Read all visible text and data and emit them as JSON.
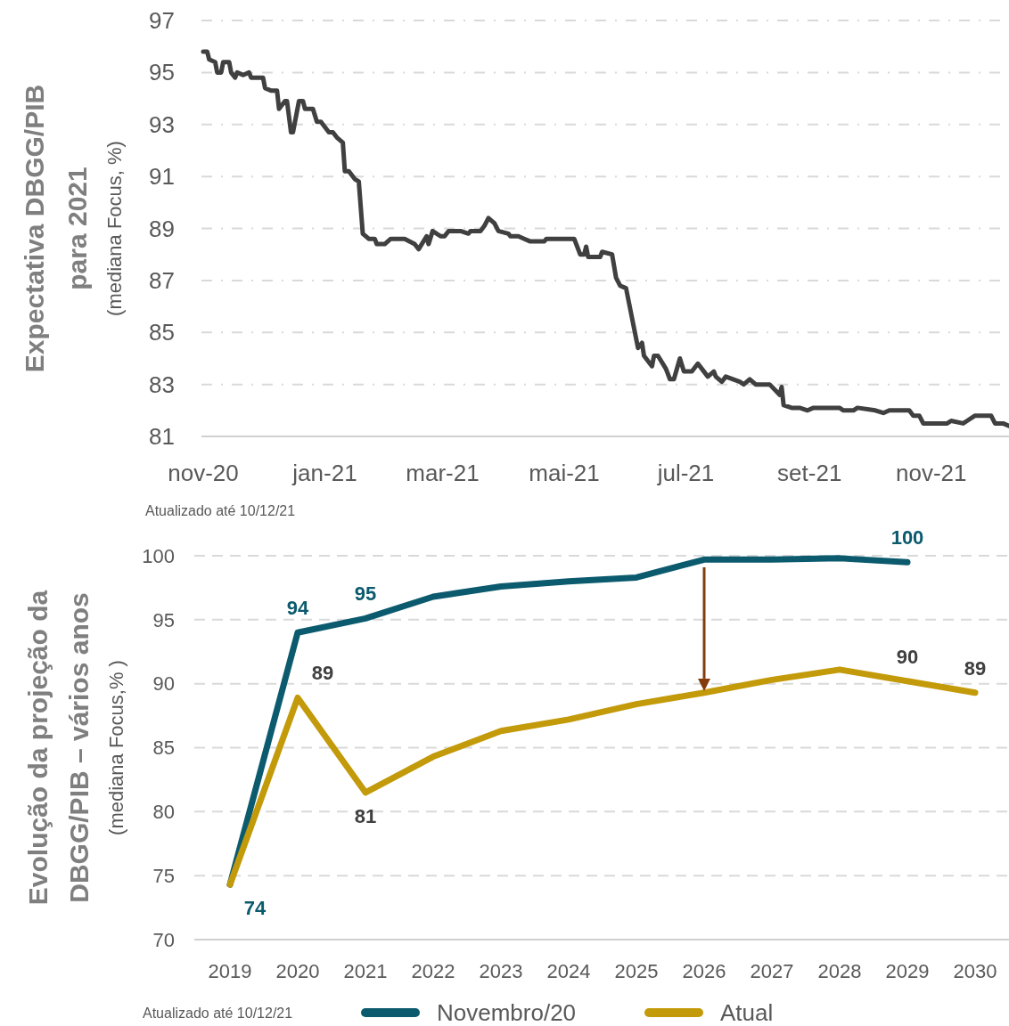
{
  "chart_data": [
    {
      "type": "line",
      "ylabel": "Expectativa DBGG/PIB\npara 2021\n(mediana Focus, %)",
      "annotations": [
        "Atualizado até 10/12/21"
      ],
      "color": "#404040",
      "grid": "y",
      "x": [
        "2020-11-01",
        "2020-11-03",
        "2020-11-04",
        "2020-11-07",
        "2020-11-08",
        "2020-11-10",
        "2020-11-11",
        "2020-11-14",
        "2020-11-15",
        "2020-11-17",
        "2020-11-18",
        "2020-11-21",
        "2020-11-24",
        "2020-11-25",
        "2020-12-01",
        "2020-12-02",
        "2020-12-05",
        "2020-12-08",
        "2020-12-09",
        "2020-12-12",
        "2020-12-13",
        "2020-12-15",
        "2020-12-16",
        "2020-12-19",
        "2020-12-21",
        "2020-12-22",
        "2020-12-26",
        "2020-12-28",
        "2020-12-30",
        "2021-01-03",
        "2021-01-05",
        "2021-01-07",
        "2021-01-10",
        "2021-01-11",
        "2021-01-13",
        "2021-01-16",
        "2021-01-18",
        "2021-01-20",
        "2021-01-23",
        "2021-01-26",
        "2021-01-27",
        "2021-01-31",
        "2021-02-03",
        "2021-02-10",
        "2021-02-15",
        "2021-02-17",
        "2021-02-21",
        "2021-02-22",
        "2021-02-24",
        "2021-02-28",
        "2021-03-02",
        "2021-03-04",
        "2021-03-10",
        "2021-03-14",
        "2021-03-15",
        "2021-03-20",
        "2021-03-22",
        "2021-03-24",
        "2021-03-27",
        "2021-03-29",
        "2021-04-03",
        "2021-04-04",
        "2021-04-08",
        "2021-04-11",
        "2021-04-14",
        "2021-04-19",
        "2021-04-21",
        "2021-04-22",
        "2021-04-30",
        "2021-05-06",
        "2021-05-09",
        "2021-05-11",
        "2021-05-12",
        "2021-05-13",
        "2021-05-19",
        "2021-05-20",
        "2021-05-25",
        "2021-05-27",
        "2021-05-29",
        "2021-06-01",
        "2021-06-07",
        "2021-06-09",
        "2021-06-10",
        "2021-06-14",
        "2021-06-15",
        "2021-06-17",
        "2021-06-21",
        "2021-06-23",
        "2021-06-25",
        "2021-06-28",
        "2021-06-30",
        "2021-07-04",
        "2021-07-07",
        "2021-07-09",
        "2021-07-12",
        "2021-07-15",
        "2021-07-16",
        "2021-07-19",
        "2021-07-21",
        "2021-07-28",
        "2021-07-30",
        "2021-08-02",
        "2021-08-05",
        "2021-08-12",
        "2021-08-17",
        "2021-08-18",
        "2021-08-19",
        "2021-08-23",
        "2021-08-27",
        "2021-08-31",
        "2021-09-03",
        "2021-09-16",
        "2021-09-18",
        "2021-09-23",
        "2021-09-25",
        "2021-10-04",
        "2021-10-08",
        "2021-10-11",
        "2021-10-21",
        "2021-10-23",
        "2021-10-26",
        "2021-10-28",
        "2021-11-09",
        "2021-11-11",
        "2021-11-17",
        "2021-11-19",
        "2021-11-23",
        "2021-11-26",
        "2021-12-01",
        "2021-12-03",
        "2021-12-07",
        "2021-12-10"
      ],
      "values": [
        95.8,
        95.8,
        95.5,
        95.4,
        95.0,
        95.0,
        95.4,
        95.4,
        95.0,
        94.8,
        95.0,
        94.9,
        95.0,
        94.8,
        94.8,
        94.4,
        94.3,
        94.3,
        93.6,
        93.9,
        93.9,
        92.7,
        92.7,
        93.9,
        93.9,
        93.6,
        93.6,
        93.1,
        93.1,
        92.7,
        92.7,
        92.5,
        92.3,
        91.2,
        91.2,
        90.9,
        90.8,
        88.8,
        88.6,
        88.6,
        88.4,
        88.4,
        88.6,
        88.6,
        88.4,
        88.2,
        88.7,
        88.4,
        88.9,
        88.7,
        88.7,
        88.9,
        88.9,
        88.8,
        88.9,
        88.9,
        89.1,
        89.4,
        89.2,
        88.9,
        88.8,
        88.7,
        88.7,
        88.6,
        88.5,
        88.5,
        88.5,
        88.6,
        88.6,
        88.6,
        88.0,
        88.0,
        88.3,
        87.9,
        87.9,
        88.1,
        88.0,
        87.1,
        86.8,
        86.7,
        84.4,
        84.6,
        84.1,
        83.7,
        84.1,
        84.1,
        83.6,
        83.2,
        83.2,
        84.0,
        83.5,
        83.5,
        83.8,
        83.6,
        83.3,
        83.5,
        83.3,
        83.1,
        83.3,
        83.1,
        83.0,
        83.2,
        83.0,
        83.0,
        82.6,
        82.9,
        82.2,
        82.1,
        82.1,
        82.0,
        82.1,
        82.1,
        82.0,
        82.0,
        82.1,
        82.0,
        81.9,
        82.0,
        82.0,
        81.8,
        81.8,
        81.5,
        81.5,
        81.6,
        81.5,
        81.6,
        81.8,
        81.8,
        81.8,
        81.5,
        81.5,
        81.4
      ],
      "xlim": [
        "2020-11-01",
        "2021-12-10"
      ],
      "xticks": [
        {
          "value": "2020-11-01",
          "label": "nov-20"
        },
        {
          "value": "2021-01-01",
          "label": "jan-21"
        },
        {
          "value": "2021-03-01",
          "label": "mar-21"
        },
        {
          "value": "2021-05-01",
          "label": "mai-21"
        },
        {
          "value": "2021-07-01",
          "label": "jul-21"
        },
        {
          "value": "2021-09-01",
          "label": "set-21"
        },
        {
          "value": "2021-11-01",
          "label": "nov-21"
        }
      ],
      "ylim": [
        81,
        97
      ],
      "yticks": [
        81,
        83,
        85,
        87,
        89,
        91,
        93,
        95,
        97
      ]
    },
    {
      "type": "line",
      "ylabel": "Evolução da projeção da\nDBGG/PIB – vários anos\n(mediana Focus,% )",
      "annotations": [
        "Atualizado até 10/12/21"
      ],
      "grid": "y",
      "legend": "bottom",
      "categories": [
        "2019",
        "2020",
        "2021",
        "2022",
        "2023",
        "2024",
        "2025",
        "2026",
        "2027",
        "2028",
        "2029",
        "2030"
      ],
      "series": [
        {
          "name": "Novembro/20",
          "color": "#0b5a6e",
          "values": [
            74.3,
            94.0,
            95.1,
            96.8,
            97.6,
            98.0,
            98.3,
            99.7,
            99.7,
            99.8,
            99.5,
            null
          ],
          "value_labels": [
            "74",
            "94",
            "95",
            null,
            null,
            null,
            null,
            null,
            null,
            null,
            "100",
            null
          ]
        },
        {
          "name": "Atual",
          "color": "#c39a0a",
          "values": [
            74.3,
            88.9,
            81.5,
            84.3,
            86.3,
            87.2,
            88.4,
            89.3,
            90.3,
            91.1,
            90.2,
            89.3
          ],
          "value_labels": [
            null,
            "89",
            "81",
            null,
            null,
            null,
            null,
            null,
            null,
            null,
            "90",
            "89"
          ]
        }
      ],
      "ylim": [
        70,
        100
      ],
      "yticks": [
        70,
        75,
        80,
        85,
        90,
        95,
        100
      ]
    }
  ]
}
